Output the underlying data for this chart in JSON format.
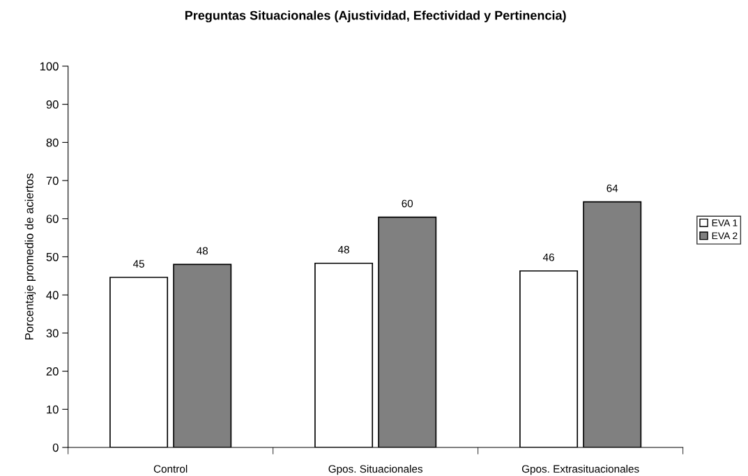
{
  "chart_data": {
    "type": "bar",
    "title": "Preguntas Situacionales (Ajustividad, Efectividad y Pertinencia)",
    "ylabel": "Porcentaje promedio de aciertos",
    "categories": [
      "Control",
      "Gpos. Situacionales",
      "Gpos. Extrasituacionales"
    ],
    "series": [
      {
        "name": "EVA 1",
        "color": "#ffffff",
        "values": [
          44.6,
          48.3,
          46.3
        ],
        "value_labels": [
          "45",
          "48",
          "46"
        ]
      },
      {
        "name": "EVA 2",
        "color": "#808080",
        "values": [
          48.0,
          60.4,
          64.4
        ],
        "value_labels": [
          "48",
          "60",
          "64"
        ]
      }
    ],
    "ylim": [
      0,
      100
    ],
    "yticks": [
      0,
      10,
      20,
      30,
      40,
      50,
      60,
      70,
      80,
      90,
      100
    ],
    "grid": false,
    "legend": "right"
  }
}
